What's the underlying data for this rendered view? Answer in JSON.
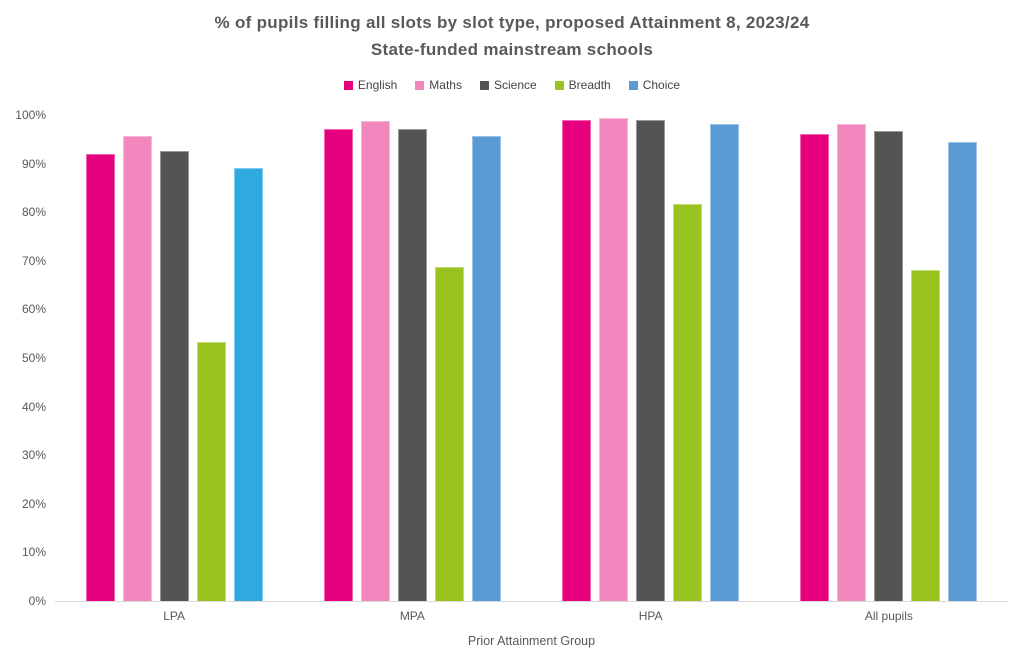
{
  "chart_data": {
    "type": "bar",
    "title_line1": "% of pupils filling all slots by slot type, proposed Attainment 8, 2023/24",
    "title_line2": "State-funded mainstream schools",
    "xlabel": "Prior Attainment Group",
    "categories": [
      "LPA",
      "MPA",
      "HPA",
      "All pupils"
    ],
    "series": [
      {
        "name": "English",
        "color": "#E6007E",
        "values": [
          91.9,
          97.1,
          98.9,
          96.0
        ]
      },
      {
        "name": "Maths",
        "color": "#F287BE",
        "values": [
          95.7,
          98.7,
          99.4,
          98.1
        ]
      },
      {
        "name": "Science",
        "color": "#545454",
        "values": [
          92.5,
          97.2,
          98.9,
          96.7
        ]
      },
      {
        "name": "Breadth",
        "color": "#99C31F",
        "values": [
          53.3,
          68.7,
          81.6,
          68.2
        ]
      },
      {
        "name": "Choice",
        "color": "#5B9BD5",
        "values": [
          89.1,
          95.6,
          98.2,
          94.5
        ],
        "color_overrides": {
          "0": "#2EAAE1"
        }
      }
    ],
    "y_ticks": [
      "0%",
      "10%",
      "20%",
      "30%",
      "40%",
      "50%",
      "60%",
      "70%",
      "80%",
      "90%",
      "100%"
    ],
    "ylim": [
      0,
      100
    ],
    "grid": false,
    "legend_position": "top",
    "text_color": "#595959",
    "axis_line_color": "#D9D9D9",
    "background_color": "#FFFFFF"
  }
}
